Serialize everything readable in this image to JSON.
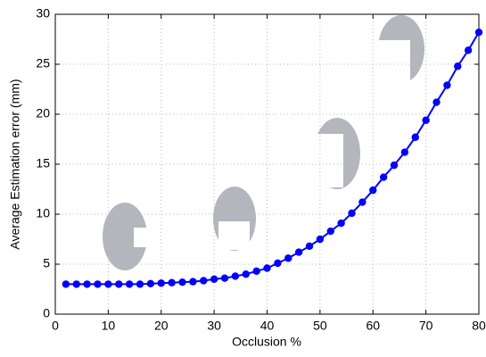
{
  "chart_data": {
    "type": "line",
    "xlabel": "Occlusion %",
    "ylabel": "Average Estimation error (mm)",
    "x": [
      2,
      4,
      6,
      8,
      10,
      12,
      14,
      16,
      18,
      20,
      22,
      24,
      26,
      28,
      30,
      32,
      34,
      36,
      38,
      40,
      42,
      44,
      46,
      48,
      50,
      52,
      54,
      56,
      58,
      60,
      62,
      64,
      66,
      68,
      70,
      72,
      74,
      76,
      78,
      80
    ],
    "series": [
      {
        "color": "#0000ff",
        "values": [
          3.0,
          3.0,
          3.0,
          3.0,
          3.0,
          3.0,
          3.0,
          3.0,
          3.05,
          3.1,
          3.15,
          3.2,
          3.25,
          3.35,
          3.5,
          3.6,
          3.8,
          4.0,
          4.3,
          4.6,
          5.1,
          5.6,
          6.2,
          6.8,
          7.5,
          8.3,
          9.1,
          10.1,
          11.2,
          12.4,
          13.7,
          14.9,
          16.2,
          17.7,
          19.4,
          21.2,
          22.9,
          24.8,
          26.4,
          28.2
        ]
      }
    ],
    "xlim": [
      0,
      80
    ],
    "xticks": [
      0,
      10,
      20,
      30,
      40,
      50,
      60,
      70,
      80
    ],
    "ylim": [
      0,
      30
    ],
    "yticks": [
      0,
      5,
      10,
      15,
      20,
      25,
      30
    ],
    "grid": true
  }
}
